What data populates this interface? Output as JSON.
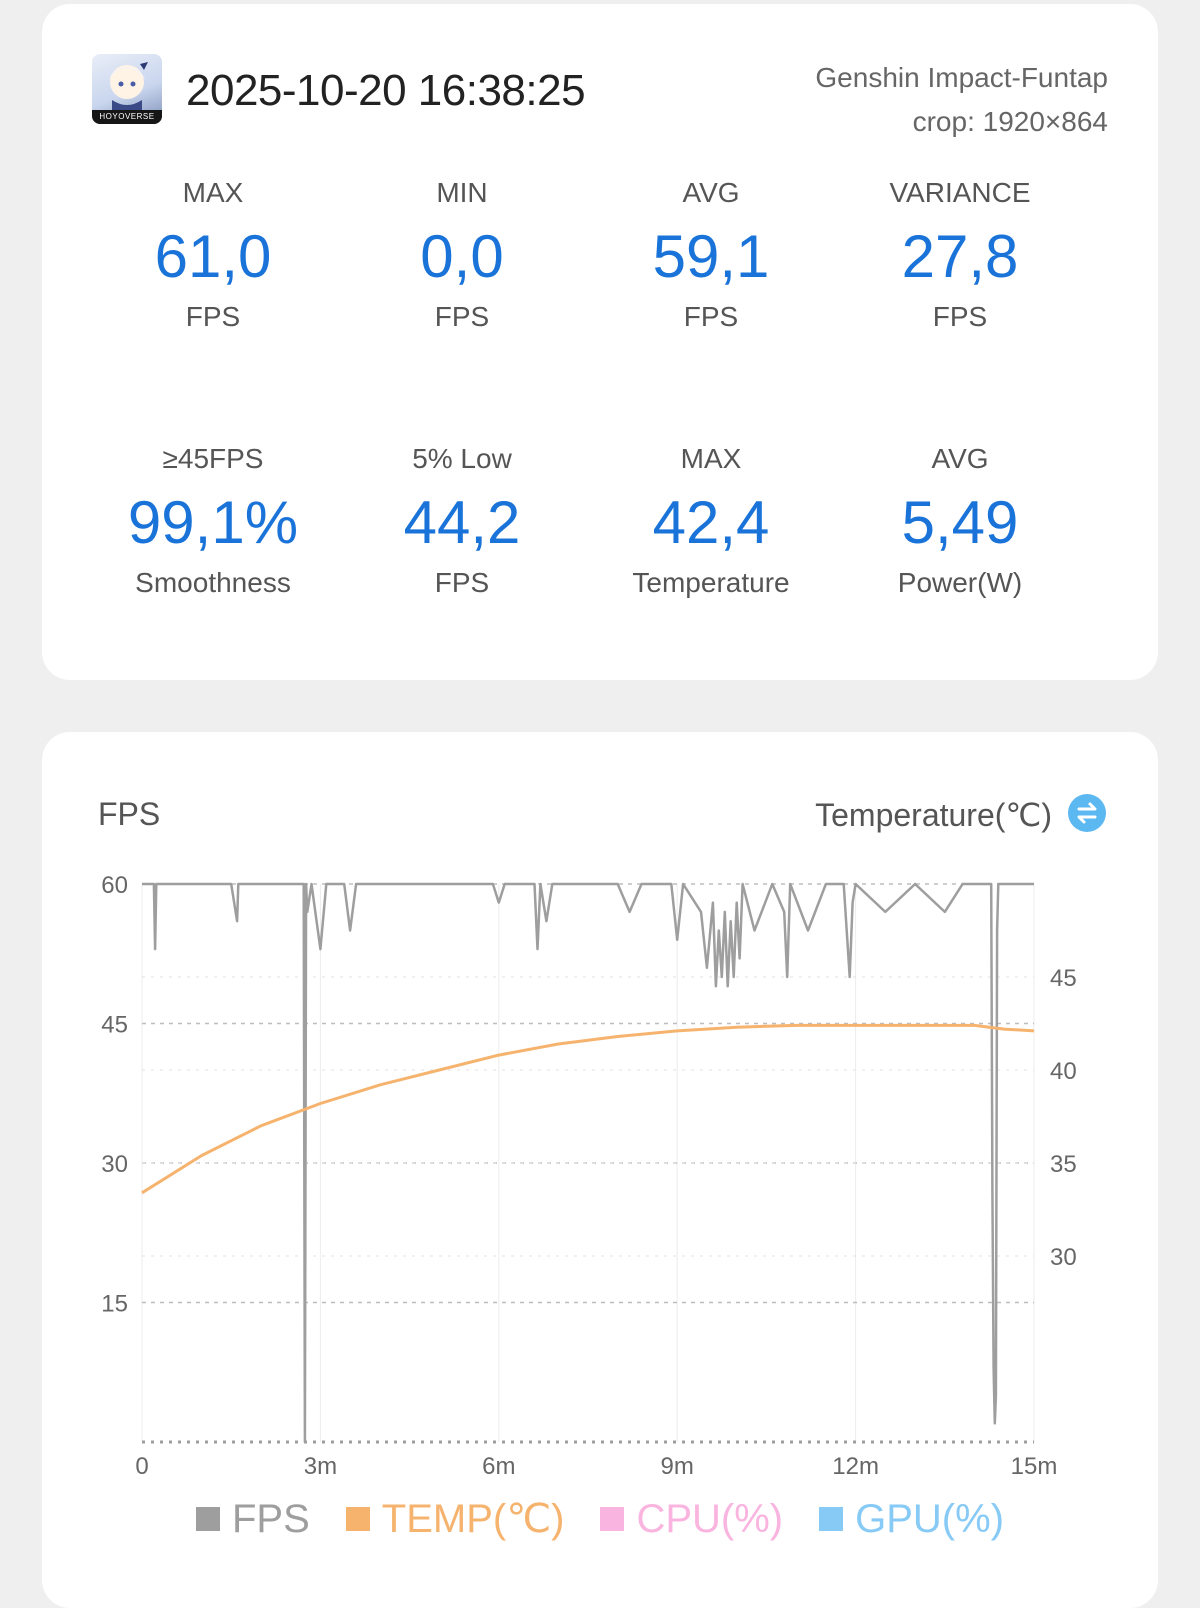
{
  "header": {
    "icon_band_text": "HOYOVERSE",
    "timestamp": "2025-10-20 16:38:25",
    "game_name": "Genshin Impact-Funtap",
    "crop": "crop: 1920×864"
  },
  "stats": [
    {
      "label": "MAX",
      "value": "61,0",
      "unit": "FPS"
    },
    {
      "label": "MIN",
      "value": "0,0",
      "unit": "FPS"
    },
    {
      "label": "AVG",
      "value": "59,1",
      "unit": "FPS"
    },
    {
      "label": "VARIANCE",
      "value": "27,8",
      "unit": "FPS"
    },
    {
      "label": "≥45FPS",
      "value": "99,1%",
      "unit": "Smoothness"
    },
    {
      "label": "5% Low",
      "value": "44,2",
      "unit": "FPS"
    },
    {
      "label": "MAX",
      "value": "42,4",
      "unit": "Temperature"
    },
    {
      "label": "AVG",
      "value": "5,49",
      "unit": "Power(W)"
    }
  ],
  "chart": {
    "left_title": "FPS",
    "right_title": "Temperature(℃)",
    "swap_icon": "swap-vertical-icon",
    "accent_color": "#1a73d9"
  },
  "chart_data": {
    "type": "line",
    "x_label_unit": "minutes",
    "xlim": [
      0,
      15
    ],
    "x_ticks": [
      0,
      3,
      6,
      9,
      12,
      15
    ],
    "x_tick_labels": [
      "0",
      "3m",
      "6m",
      "9m",
      "12m",
      "15m"
    ],
    "y_left": {
      "range": [
        0,
        60
      ],
      "ticks": [
        15,
        30,
        45,
        60
      ],
      "tick_labels": [
        "15",
        "30",
        "45",
        "60"
      ]
    },
    "y_right": {
      "range": [
        20,
        50
      ],
      "ticks": [
        30,
        35,
        40,
        45
      ],
      "tick_labels": [
        "30",
        "35",
        "40",
        "45"
      ]
    },
    "grid": "horizontal-dashed",
    "legend_position": "bottom",
    "series": [
      {
        "name": "FPS",
        "axis": "left",
        "color": "#9e9e9e",
        "baseline": 60,
        "x": [
          0.0,
          0.2,
          0.22,
          0.24,
          0.5,
          1.5,
          1.6,
          1.62,
          2.5,
          2.72,
          2.74,
          2.76,
          2.78,
          2.85,
          3.0,
          3.1,
          3.4,
          3.5,
          3.6,
          5.9,
          6.0,
          6.1,
          6.6,
          6.65,
          6.7,
          6.8,
          6.9,
          7.5,
          8.0,
          8.2,
          8.4,
          8.9,
          9.0,
          9.1,
          9.4,
          9.5,
          9.6,
          9.65,
          9.7,
          9.75,
          9.8,
          9.85,
          9.9,
          9.95,
          10.0,
          10.05,
          10.1,
          10.3,
          10.6,
          10.8,
          10.85,
          10.9,
          11.2,
          11.5,
          11.8,
          11.9,
          11.95,
          12.0,
          12.5,
          13.0,
          13.5,
          13.8,
          14.0,
          14.28,
          14.3,
          14.32,
          14.34,
          14.36,
          14.38,
          14.4,
          14.5,
          14.8,
          15.0
        ],
        "y": [
          60,
          60,
          53,
          60,
          60,
          60,
          56,
          60,
          60,
          60,
          0,
          60,
          57,
          60,
          53,
          60,
          60,
          55,
          60,
          60,
          58,
          60,
          60,
          53,
          60,
          56,
          60,
          60,
          60,
          57,
          60,
          60,
          54,
          60,
          57,
          51,
          58,
          49,
          55,
          50,
          57,
          49,
          56,
          50,
          58,
          52,
          60,
          55,
          60,
          57,
          50,
          60,
          55,
          60,
          60,
          50,
          58,
          60,
          57,
          60,
          57,
          60,
          60,
          60,
          27,
          8,
          2,
          5,
          55,
          60,
          60,
          60,
          60
        ]
      },
      {
        "name": "TEMP(℃)",
        "axis": "right",
        "color": "#f6b36e",
        "x": [
          0,
          1,
          2,
          3,
          4,
          5,
          6,
          7,
          8,
          9,
          10,
          11,
          12,
          13,
          14,
          14.5,
          15
        ],
        "y": [
          33.4,
          35.4,
          37.0,
          38.2,
          39.2,
          40.0,
          40.8,
          41.4,
          41.8,
          42.1,
          42.3,
          42.4,
          42.4,
          42.4,
          42.4,
          42.2,
          42.1
        ]
      },
      {
        "name": "CPU(%)",
        "axis": "right",
        "color": "#f9b4df",
        "x": [],
        "y": []
      },
      {
        "name": "GPU(%)",
        "axis": "right",
        "color": "#86caf5",
        "x": [],
        "y": []
      }
    ]
  }
}
